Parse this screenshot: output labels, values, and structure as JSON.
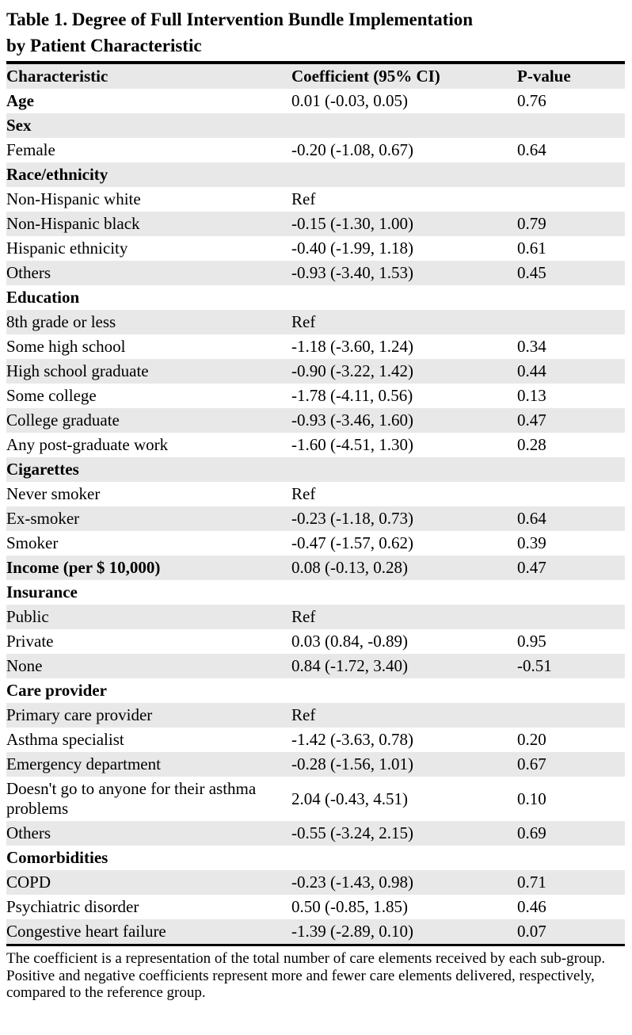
{
  "table": {
    "title_lines": [
      "Table 1. Degree of Full Intervention Bundle Implementation",
      "by Patient Characteristic"
    ],
    "columns": [
      "Characteristic",
      "Coefficient (95% CI)",
      "P-value"
    ],
    "rows": [
      {
        "characteristic": "Age",
        "bold": true,
        "coefficient": "0.01 (-0.03, 0.05)",
        "p_value": "0.76"
      },
      {
        "characteristic": "Sex",
        "bold": true,
        "coefficient": "",
        "p_value": ""
      },
      {
        "characteristic": "Female",
        "bold": false,
        "coefficient": "-0.20 (-1.08, 0.67)",
        "p_value": "0.64"
      },
      {
        "characteristic": "Race/ethnicity",
        "bold": true,
        "coefficient": "",
        "p_value": ""
      },
      {
        "characteristic": "Non-Hispanic white",
        "bold": false,
        "coefficient": "Ref",
        "p_value": ""
      },
      {
        "characteristic": "Non-Hispanic black",
        "bold": false,
        "coefficient": "-0.15 (-1.30, 1.00)",
        "p_value": "0.79"
      },
      {
        "characteristic": "Hispanic ethnicity",
        "bold": false,
        "coefficient": "-0.40 (-1.99, 1.18)",
        "p_value": "0.61"
      },
      {
        "characteristic": "Others",
        "bold": false,
        "coefficient": "-0.93 (-3.40, 1.53)",
        "p_value": "0.45"
      },
      {
        "characteristic": "Education",
        "bold": true,
        "coefficient": "",
        "p_value": ""
      },
      {
        "characteristic": "8th grade or less",
        "bold": false,
        "coefficient": "Ref",
        "p_value": ""
      },
      {
        "characteristic": "Some high school",
        "bold": false,
        "coefficient": "-1.18 (-3.60, 1.24)",
        "p_value": "0.34"
      },
      {
        "characteristic": "High school graduate",
        "bold": false,
        "coefficient": "-0.90 (-3.22, 1.42)",
        "p_value": "0.44"
      },
      {
        "characteristic": "Some college",
        "bold": false,
        "coefficient": "-1.78 (-4.11, 0.56)",
        "p_value": "0.13"
      },
      {
        "characteristic": "College graduate",
        "bold": false,
        "coefficient": "-0.93 (-3.46, 1.60)",
        "p_value": "0.47"
      },
      {
        "characteristic": "Any post-graduate work",
        "bold": false,
        "coefficient": "-1.60 (-4.51, 1.30)",
        "p_value": "0.28"
      },
      {
        "characteristic": "Cigarettes",
        "bold": true,
        "coefficient": "",
        "p_value": ""
      },
      {
        "characteristic": "Never smoker",
        "bold": false,
        "coefficient": "Ref",
        "p_value": ""
      },
      {
        "characteristic": "Ex-smoker",
        "bold": false,
        "coefficient": "-0.23 (-1.18, 0.73)",
        "p_value": "0.64"
      },
      {
        "characteristic": "Smoker",
        "bold": false,
        "coefficient": "-0.47 (-1.57, 0.62)",
        "p_value": "0.39"
      },
      {
        "characteristic": "Income (per  $ 10,000)",
        "bold": true,
        "coefficient": "0.08 (-0.13, 0.28)",
        "p_value": "0.47"
      },
      {
        "characteristic": "Insurance",
        "bold": true,
        "coefficient": "",
        "p_value": ""
      },
      {
        "characteristic": "Public",
        "bold": false,
        "coefficient": "Ref",
        "p_value": ""
      },
      {
        "characteristic": "Private",
        "bold": false,
        "coefficient": "0.03 (0.84, -0.89)",
        "p_value": "0.95"
      },
      {
        "characteristic": "None",
        "bold": false,
        "coefficient": "0.84 (-1.72, 3.40)",
        "p_value": "-0.51"
      },
      {
        "characteristic": "Care provider",
        "bold": true,
        "coefficient": "",
        "p_value": ""
      },
      {
        "characteristic": "Primary care provider",
        "bold": false,
        "coefficient": "Ref",
        "p_value": ""
      },
      {
        "characteristic": "Asthma specialist",
        "bold": false,
        "coefficient": "-1.42 (-3.63, 0.78)",
        "p_value": "0.20"
      },
      {
        "characteristic": "Emergency department",
        "bold": false,
        "coefficient": "-0.28 (-1.56, 1.01)",
        "p_value": "0.67"
      },
      {
        "characteristic": "Doesn't go to anyone for their asthma problems",
        "bold": false,
        "coefficient": "2.04 (-0.43, 4.51)",
        "p_value": "0.10"
      },
      {
        "characteristic": "Others",
        "bold": false,
        "coefficient": "-0.55 (-3.24, 2.15)",
        "p_value": "0.69"
      },
      {
        "characteristic": "Comorbidities",
        "bold": true,
        "coefficient": "",
        "p_value": ""
      },
      {
        "characteristic": "COPD",
        "bold": false,
        "coefficient": "-0.23 (-1.43, 0.98)",
        "p_value": "0.71"
      },
      {
        "characteristic": "Psychiatric disorder",
        "bold": false,
        "coefficient": "0.50 (-0.85, 1.85)",
        "p_value": "0.46"
      },
      {
        "characteristic": "Congestive heart failure",
        "bold": false,
        "coefficient": "-1.39 (-2.89, 0.10)",
        "p_value": "0.07"
      }
    ],
    "footnote": "The coefficient is a representation of the total number of care elements received by each sub-group. Positive and negative coefficients represent more and fewer care elements delivered, respectively, compared to the reference group."
  }
}
